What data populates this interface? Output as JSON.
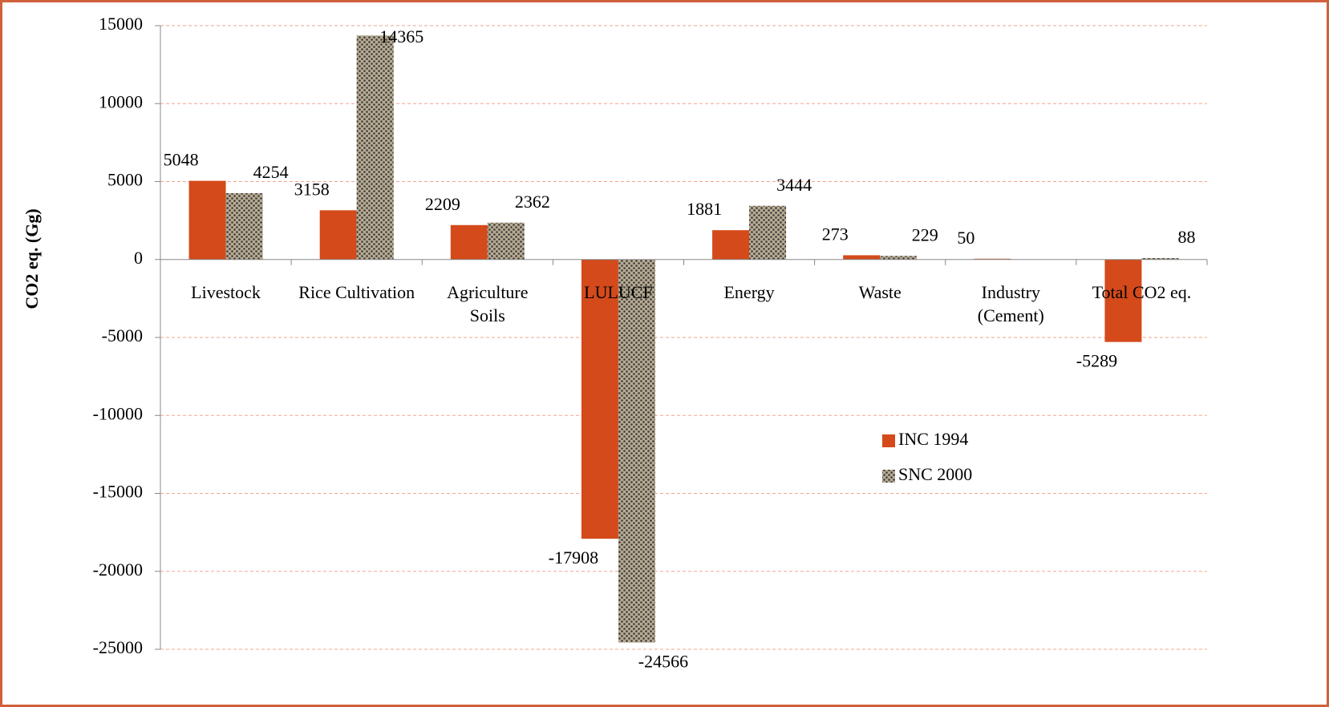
{
  "chart_data": {
    "type": "bar",
    "y_label": "CO2 eq. (Gg)",
    "categories": [
      "Livestock",
      "Rice Cultivation",
      "Agriculture Soils",
      "LULUCF",
      "Energy",
      "Waste",
      "Industry (Cement)",
      "Total CO2 eq."
    ],
    "series": [
      {
        "name": "INC 1994",
        "color": "#d44a1a",
        "values": [
          5048,
          3158,
          2209,
          -17908,
          1881,
          273,
          50,
          -5289
        ]
      },
      {
        "name": "SNC 2000",
        "color": "#b8ab92",
        "pattern": "dots",
        "values": [
          4254,
          14365,
          2362,
          -24566,
          3444,
          229,
          null,
          88
        ]
      }
    ],
    "ylim": [
      -25000,
      15000
    ],
    "yticks": [
      -25000,
      -20000,
      -15000,
      -10000,
      -5000,
      0,
      5000,
      10000,
      15000
    ],
    "grid": true
  }
}
